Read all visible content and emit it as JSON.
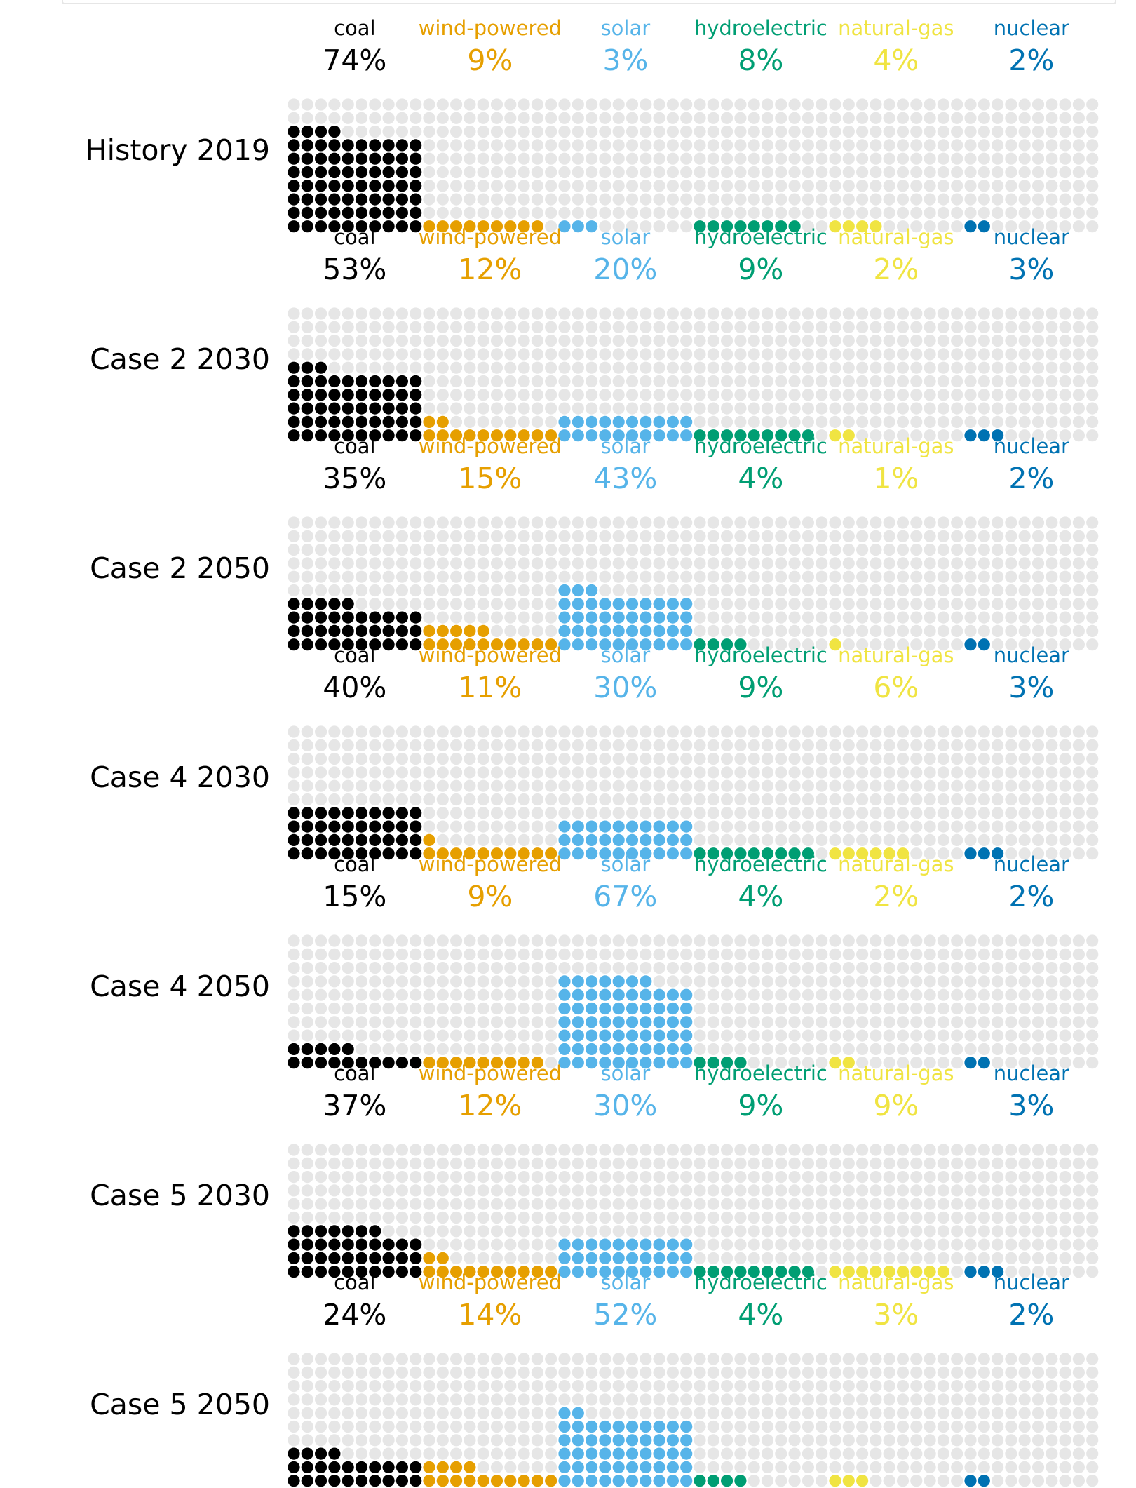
{
  "chart_data": {
    "type": "waffle",
    "categories": [
      "coal",
      "wind-powered",
      "solar",
      "hydroelectric",
      "natural-gas",
      "nuclear"
    ],
    "colors": {
      "coal": "#000000",
      "wind-powered": "#e69f00",
      "solar": "#56b4e9",
      "hydroelectric": "#009e73",
      "natural-gas": "#f0e442",
      "nuclear": "#0072b2",
      "empty": "#e6e6e6"
    },
    "rows": [
      {
        "label": "History 2019",
        "values": [
          74,
          9,
          3,
          8,
          4,
          2
        ],
        "value_labels": [
          "74%",
          "9%",
          "3%",
          "8%",
          "4%",
          "2%"
        ]
      },
      {
        "label": "Case 2 2030",
        "values": [
          53,
          12,
          20,
          9,
          2,
          3
        ],
        "value_labels": [
          "53%",
          "12%",
          "20%",
          "9%",
          "2%",
          "3%"
        ]
      },
      {
        "label": "Case 2 2050",
        "values": [
          35,
          15,
          43,
          4,
          1,
          2
        ],
        "value_labels": [
          "35%",
          "15%",
          "43%",
          "4%",
          "1%",
          "2%"
        ]
      },
      {
        "label": "Case 4 2030",
        "values": [
          40,
          11,
          30,
          9,
          6,
          3
        ],
        "value_labels": [
          "40%",
          "11%",
          "30%",
          "9%",
          "6%",
          "3%"
        ]
      },
      {
        "label": "Case 4 2050",
        "values": [
          15,
          9,
          67,
          4,
          2,
          2
        ],
        "value_labels": [
          "15%",
          "9%",
          "67%",
          "4%",
          "2%",
          "2%"
        ]
      },
      {
        "label": "Case 5 2030",
        "values": [
          37,
          12,
          30,
          9,
          9,
          3
        ],
        "value_labels": [
          "37%",
          "12%",
          "30%",
          "9%",
          "9%",
          "3%"
        ]
      },
      {
        "label": "Case 5 2050",
        "values": [
          24,
          14,
          52,
          4,
          3,
          2
        ],
        "value_labels": [
          "24%",
          "14%",
          "52%",
          "4%",
          "3%",
          "2%"
        ]
      }
    ],
    "grid": "10x10"
  }
}
